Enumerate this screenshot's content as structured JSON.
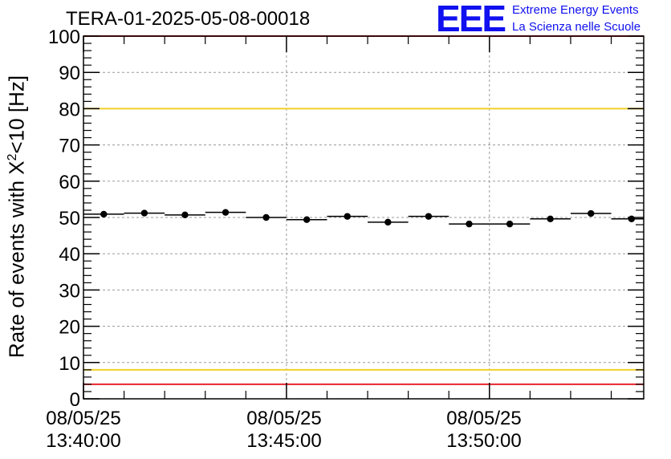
{
  "chart_data": {
    "type": "scatter",
    "title": "TERA-01-2025-05-08-00018",
    "ylabel_main": "Rate of events with X",
    "ylabel_sup": "2",
    "ylabel_tail": "<10 [Hz]",
    "ylim": [
      0,
      100
    ],
    "yticks": [
      "0",
      "10",
      "20",
      "30",
      "40",
      "50",
      "60",
      "70",
      "80",
      "90",
      "100"
    ],
    "xlim_minutes": [
      0,
      13.8
    ],
    "xticks": [
      {
        "date": "08/05/25",
        "time": "13:40:00",
        "minute": 0
      },
      {
        "date": "08/05/25",
        "time": "13:45:00",
        "minute": 5
      },
      {
        "date": "08/05/25",
        "time": "13:50:00",
        "minute": 10
      }
    ],
    "grid": true,
    "bin_width_minutes": 1,
    "x": [
      0.5,
      1.5,
      2.5,
      3.5,
      4.5,
      5.5,
      6.5,
      7.5,
      8.5,
      9.5,
      10.5,
      11.5,
      12.5,
      13.5
    ],
    "values": [
      50.9,
      51.2,
      50.7,
      51.4,
      50.0,
      49.4,
      50.3,
      48.7,
      50.3,
      48.2,
      48.2,
      49.6,
      51.1,
      49.6
    ],
    "thresholds": [
      {
        "value": 100,
        "color": "#e8242b"
      },
      {
        "value": 80,
        "color": "#f2cf2a"
      },
      {
        "value": 8,
        "color": "#f2cf2a"
      },
      {
        "value": 4,
        "color": "#e8242b"
      }
    ]
  },
  "logo": {
    "mark": "EEE",
    "line1": "Extreme Energy Events",
    "line2": "La Scienza nelle Scuole",
    "color": "#1010f0"
  }
}
